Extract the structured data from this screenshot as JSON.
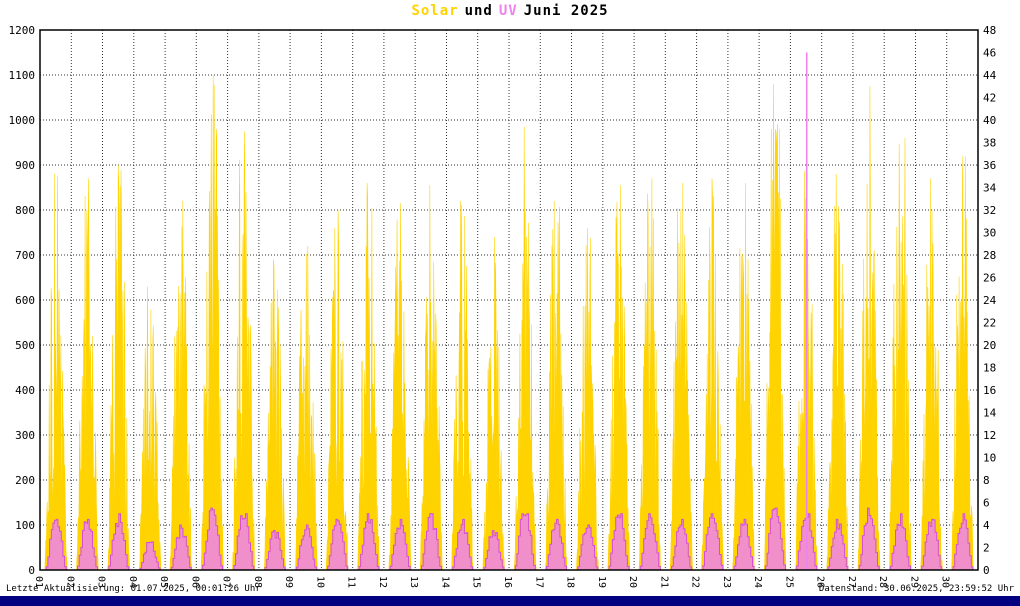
{
  "title": {
    "solar_label": "Solar",
    "conjunction": "und",
    "uv_label": "UV",
    "period": "Juni 2025"
  },
  "footer": {
    "last_update": "Letzte Aktualisierung: 01.07.2025, 00:01:26 Uhr",
    "data_state": "Datenstand: 30.06.2025, 23:59:52 Uhr"
  },
  "colors": {
    "solar": "#FFD300",
    "uv": "#EE82EE",
    "uv_outline": "#D44FD4",
    "grid": "#333333",
    "border": "#000000",
    "footer_bar": "#000080",
    "background": "#FFFFFF"
  },
  "chart_data": {
    "type": "area",
    "title": "Solar und UV Juni 2025",
    "categories": [
      "01",
      "02",
      "03",
      "04",
      "05",
      "06",
      "07",
      "08",
      "09",
      "10",
      "11",
      "12",
      "13",
      "14",
      "15",
      "16",
      "17",
      "18",
      "19",
      "20",
      "21",
      "22",
      "23",
      "24",
      "25",
      "26",
      "27",
      "28",
      "29",
      "30"
    ],
    "y_left": {
      "label": "Solar",
      "min": 0,
      "max": 1200,
      "step": 100
    },
    "y_right": {
      "label": "UV",
      "min": 0,
      "max": 48,
      "step": 2
    },
    "grid": true,
    "legend": "none",
    "series": [
      {
        "name": "Solar",
        "axis": "left",
        "color": "#FFD300",
        "daily_peaks": [
          880,
          870,
          900,
          630,
          820,
          1100,
          975,
          690,
          720,
          800,
          860,
          815,
          855,
          820,
          740,
          985,
          820,
          760,
          855,
          870,
          860,
          870,
          860,
          1080,
          900,
          880,
          1075,
          960,
          870,
          920
        ]
      },
      {
        "name": "UV",
        "axis": "right",
        "color": "#EE82EE",
        "daily_peaks": [
          4.5,
          4.5,
          5,
          2.5,
          4,
          5.5,
          5,
          3.5,
          4,
          4.5,
          5,
          4.5,
          5,
          4.5,
          3.5,
          5,
          4.5,
          4,
          5,
          5,
          4.5,
          5,
          4.5,
          5.5,
          5,
          4.5,
          5.5,
          5,
          4.5,
          5
        ]
      }
    ],
    "anomalies": [
      {
        "series": "UV",
        "day": 25,
        "peak": 46
      }
    ]
  }
}
